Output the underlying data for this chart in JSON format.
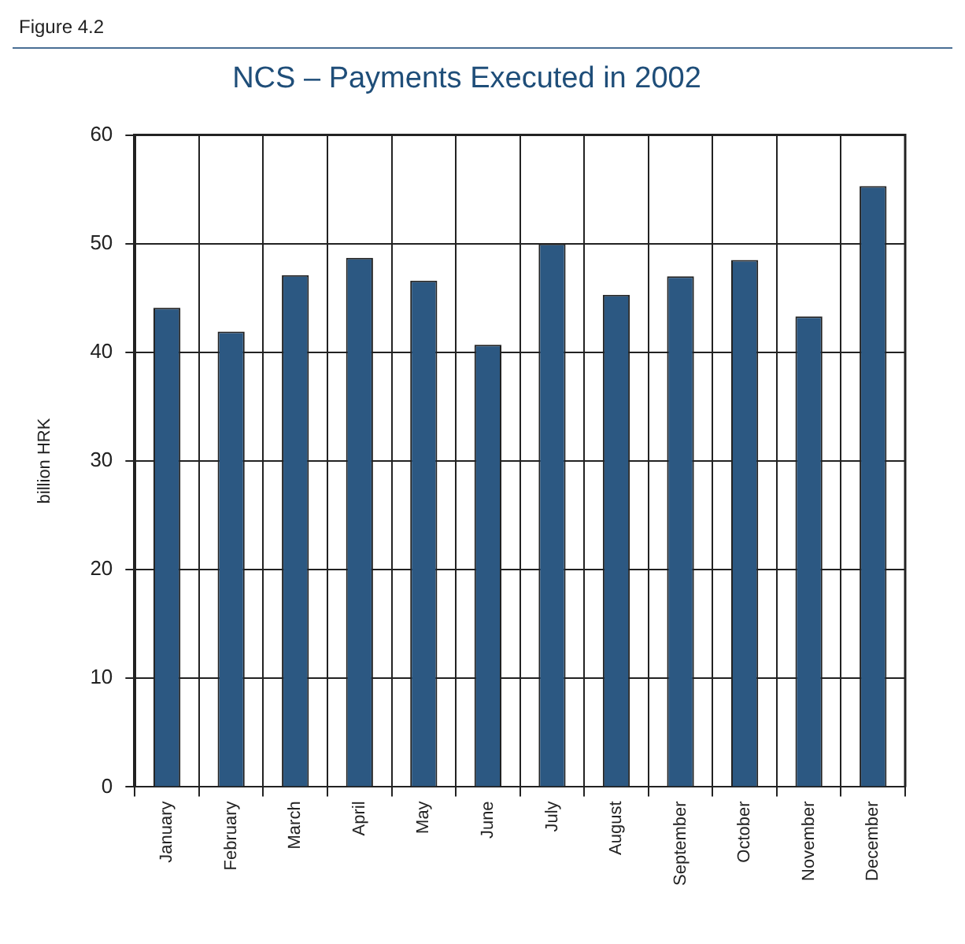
{
  "chart_data": {
    "type": "bar",
    "title": "NCS – Payments Executed in 2002",
    "ylabel": "billion HRK",
    "annotations": [
      "Figure 4.2"
    ],
    "categories": [
      "January",
      "February",
      "March",
      "April",
      "May",
      "June",
      "July",
      "August",
      "September",
      "October",
      "November",
      "December"
    ],
    "values": [
      44.1,
      41.9,
      47.1,
      48.7,
      46.6,
      40.7,
      50.0,
      45.3,
      47.0,
      48.5,
      43.3,
      55.3
    ],
    "color": "#2c5882",
    "ylim": [
      0,
      60
    ],
    "yticks": [
      0,
      10,
      20,
      30,
      40,
      50,
      60
    ],
    "grid": true
  }
}
